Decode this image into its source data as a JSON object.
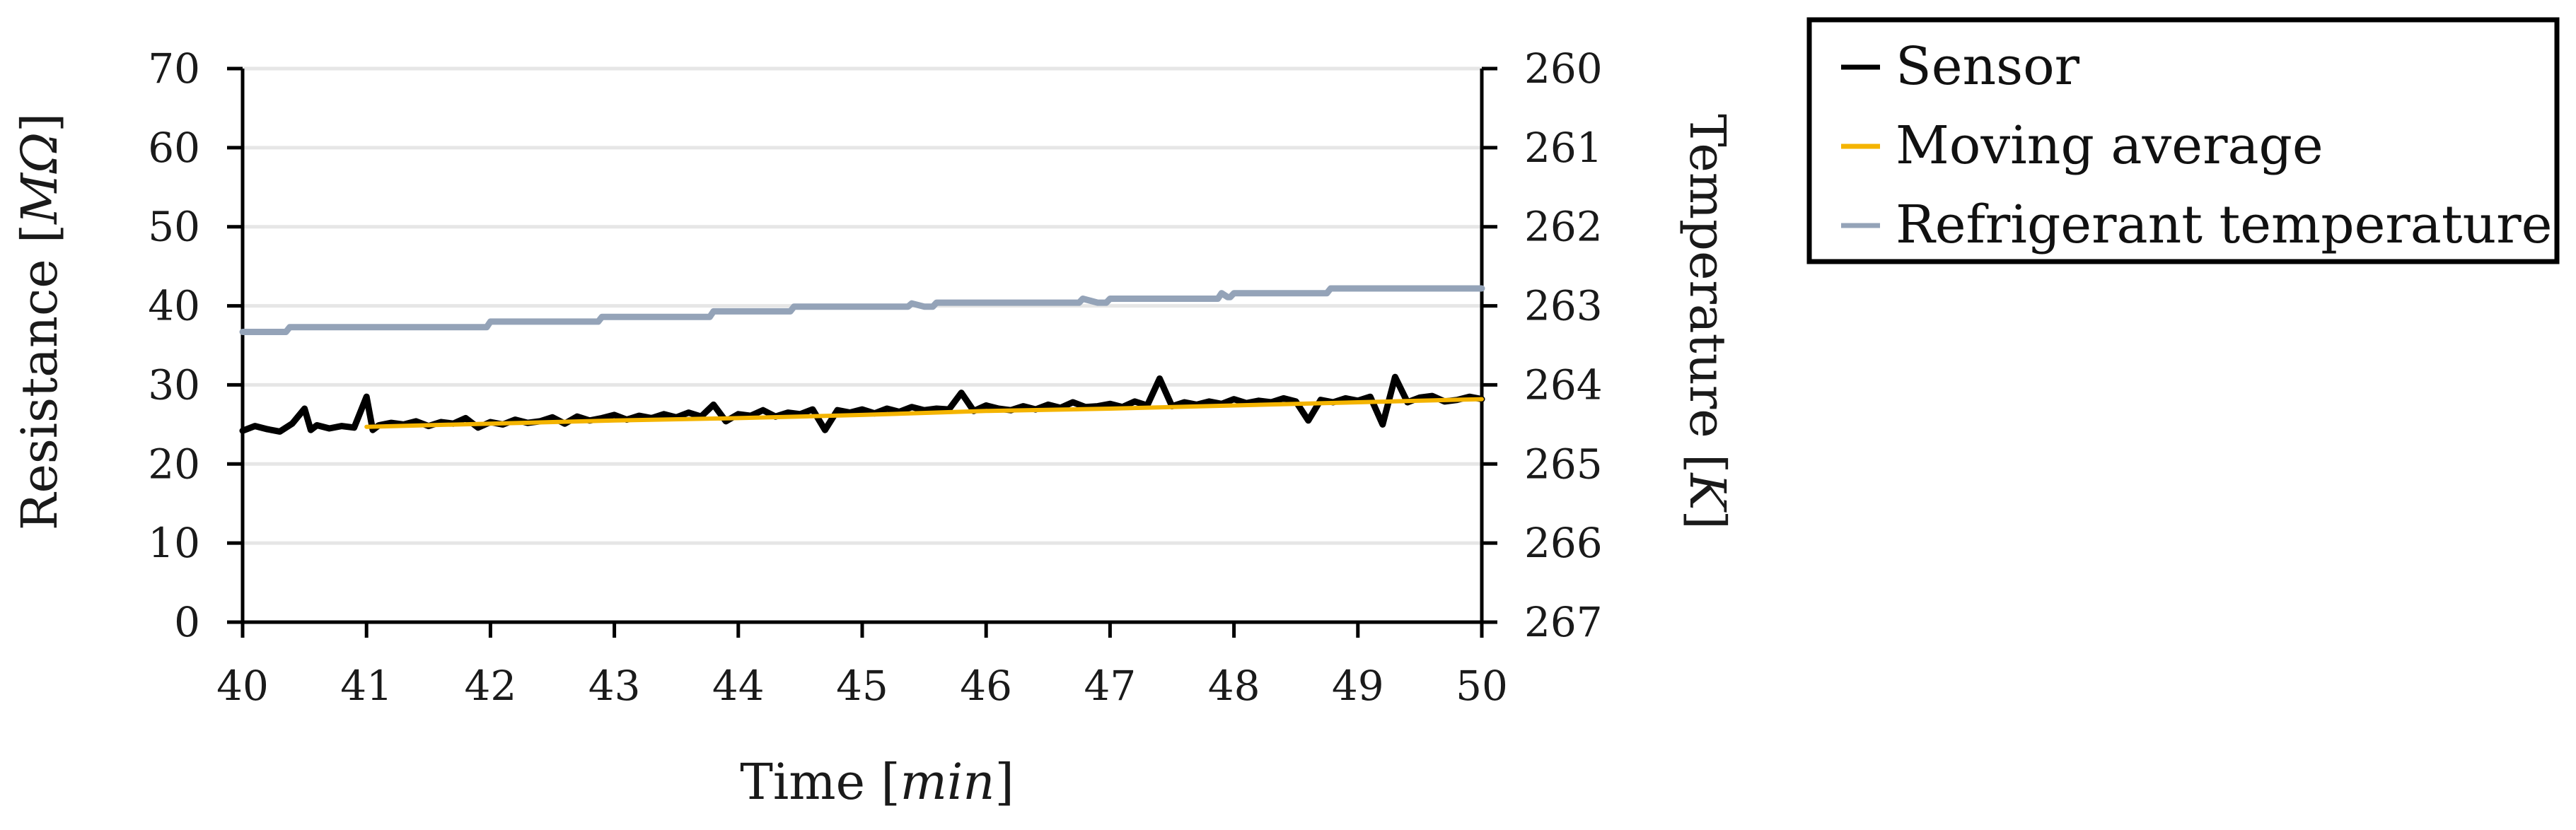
{
  "chart_data": {
    "type": "line",
    "xlabel": "Time",
    "xlabel_unit": "min",
    "ylabel": "Resistance",
    "ylabel_unit": "MΩ",
    "y2label": "Temperature",
    "y2label_unit": "K",
    "xlim": [
      40,
      50
    ],
    "ylim": [
      0,
      70
    ],
    "y2lim": [
      260,
      267
    ],
    "y2_inverted": true,
    "x_ticks": [
      "40",
      "41",
      "42",
      "43",
      "44",
      "45",
      "46",
      "47",
      "48",
      "49",
      "50"
    ],
    "y_ticks": [
      "0",
      "10",
      "20",
      "30",
      "40",
      "50",
      "60",
      "70"
    ],
    "y2_ticks": [
      "260",
      "261",
      "262",
      "263",
      "264",
      "265",
      "266",
      "267"
    ],
    "grid": "horizontal",
    "legend_position": "top-right, outside plot",
    "series": [
      {
        "name": "Sensor",
        "axis": "left",
        "color": "#000000",
        "x": [
          40.0,
          40.1,
          40.2,
          40.3,
          40.4,
          40.5,
          40.55,
          40.6,
          40.7,
          40.8,
          40.9,
          41.0,
          41.05,
          41.1,
          41.2,
          41.3,
          41.4,
          41.5,
          41.6,
          41.7,
          41.8,
          41.9,
          42.0,
          42.1,
          42.2,
          42.3,
          42.4,
          42.5,
          42.6,
          42.7,
          42.8,
          42.9,
          43.0,
          43.1,
          43.2,
          43.3,
          43.4,
          43.5,
          43.6,
          43.7,
          43.8,
          43.9,
          44.0,
          44.1,
          44.2,
          44.3,
          44.4,
          44.5,
          44.6,
          44.7,
          44.8,
          44.9,
          45.0,
          45.1,
          45.2,
          45.3,
          45.4,
          45.5,
          45.6,
          45.7,
          45.8,
          45.9,
          46.0,
          46.1,
          46.2,
          46.3,
          46.4,
          46.5,
          46.6,
          46.7,
          46.8,
          46.9,
          47.0,
          47.1,
          47.2,
          47.3,
          47.4,
          47.5,
          47.6,
          47.7,
          47.8,
          47.9,
          48.0,
          48.1,
          48.2,
          48.3,
          48.4,
          48.5,
          48.6,
          48.7,
          48.8,
          48.9,
          49.0,
          49.1,
          49.2,
          49.3,
          49.4,
          49.5,
          49.6,
          49.7,
          49.8,
          49.9,
          50.0
        ],
        "values": [
          24.2,
          24.8,
          24.4,
          24.1,
          25.1,
          27.0,
          24.3,
          24.9,
          24.5,
          24.8,
          24.6,
          28.5,
          24.3,
          24.9,
          25.2,
          25.0,
          25.4,
          24.8,
          25.3,
          25.1,
          25.8,
          24.6,
          25.3,
          25.0,
          25.6,
          25.2,
          25.4,
          25.9,
          25.1,
          26.0,
          25.5,
          25.8,
          26.2,
          25.6,
          26.1,
          25.8,
          26.3,
          25.9,
          26.5,
          26.0,
          27.5,
          25.4,
          26.3,
          26.1,
          26.8,
          26.0,
          26.5,
          26.3,
          26.9,
          24.3,
          26.8,
          26.5,
          26.9,
          26.4,
          27.0,
          26.6,
          27.2,
          26.8,
          27.0,
          26.9,
          29.0,
          26.7,
          27.4,
          27.0,
          26.8,
          27.3,
          26.9,
          27.5,
          27.1,
          27.8,
          27.2,
          27.3,
          27.6,
          27.2,
          27.9,
          27.4,
          30.8,
          27.3,
          27.8,
          27.5,
          27.9,
          27.6,
          28.2,
          27.7,
          28.0,
          27.8,
          28.3,
          27.9,
          25.5,
          28.1,
          27.8,
          28.3,
          28.0,
          28.5,
          25.0,
          31.0,
          27.8,
          28.4,
          28.6,
          27.9,
          28.1,
          28.5,
          28.2
        ]
      },
      {
        "name": "Moving average",
        "axis": "left",
        "color": "#f4b400",
        "x": [
          41.0,
          42.0,
          43.0,
          44.0,
          45.0,
          46.0,
          47.0,
          48.0,
          49.0,
          50.0
        ],
        "values": [
          24.7,
          25.1,
          25.5,
          25.8,
          26.2,
          26.7,
          27.0,
          27.4,
          27.8,
          28.2
        ]
      },
      {
        "name": "Refrigerant temperature",
        "axis": "right",
        "color": "#94a3b8",
        "x": [
          40.0,
          40.35,
          40.38,
          41.97,
          42.0,
          42.87,
          42.9,
          43.77,
          43.8,
          44.42,
          44.45,
          45.37,
          45.4,
          45.5,
          45.57,
          45.6,
          46.75,
          46.78,
          46.9,
          46.97,
          47.0,
          47.87,
          47.9,
          47.95,
          47.97,
          48.0,
          48.75,
          48.78,
          50.0
        ],
        "values": [
          263.33,
          263.33,
          263.27,
          263.27,
          263.2,
          263.2,
          263.14,
          263.14,
          263.07,
          263.07,
          263.01,
          263.01,
          262.97,
          263.01,
          263.01,
          262.96,
          262.96,
          262.91,
          262.96,
          262.96,
          262.91,
          262.91,
          262.84,
          262.89,
          262.89,
          262.84,
          262.84,
          262.78,
          262.78
        ]
      }
    ]
  }
}
